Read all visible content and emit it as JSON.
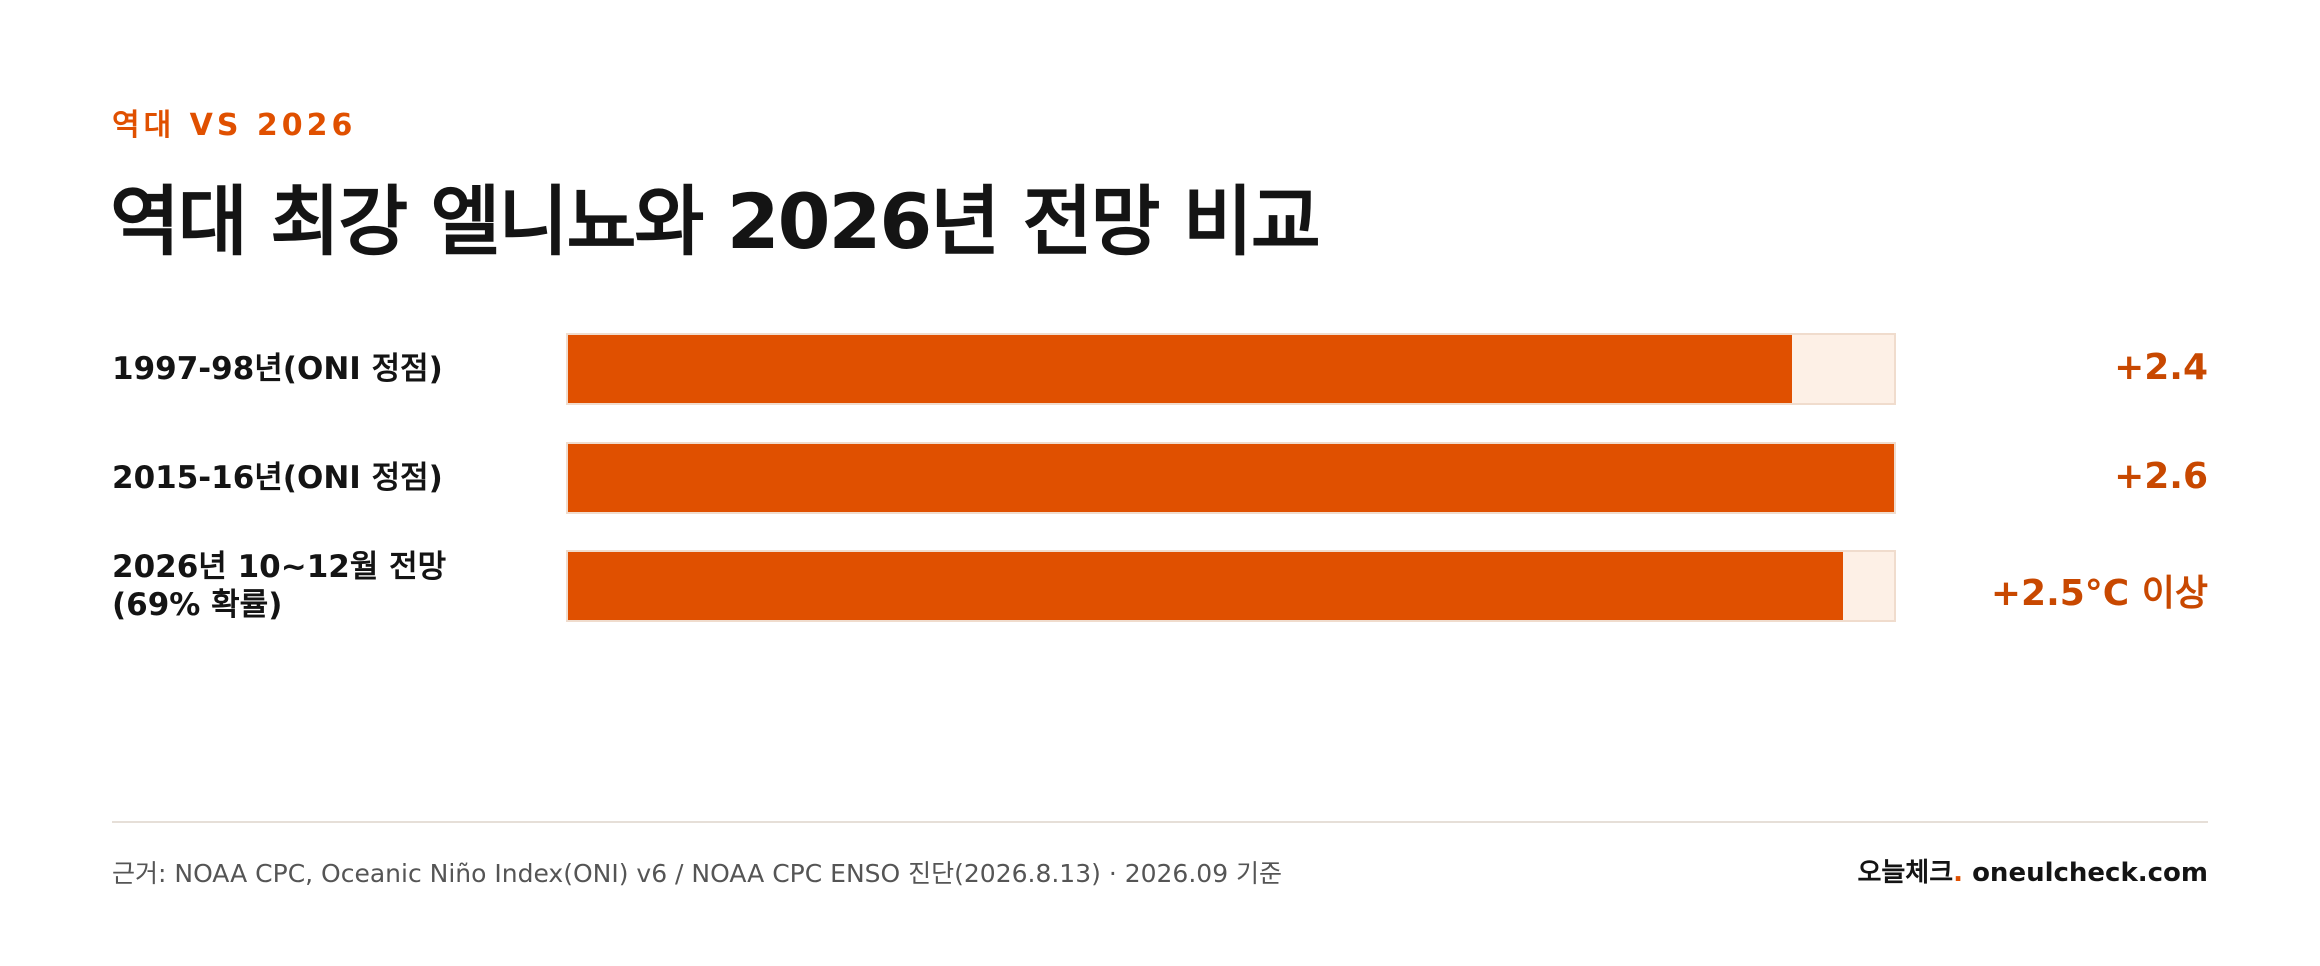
{
  "header": {
    "eyebrow": "역대 VS 2026",
    "title": "역대 최강 엘니뇨와 2026년 전망 비교"
  },
  "chart_data": {
    "type": "bar",
    "orientation": "horizontal",
    "xlim": [
      0,
      2.6
    ],
    "categories": [
      "1997-98년(ONI 정점)",
      "2015-16년(ONI 정점)",
      "2026년 10~12월 전망(69% 확률)"
    ],
    "values": [
      2.4,
      2.6,
      2.5
    ],
    "value_labels": [
      "+2.4",
      "+2.6",
      "+2.5°C 이상"
    ]
  },
  "footer": {
    "source": "근거: NOAA CPC, Oceanic Niño Index(ONI) v6 / NOAA CPC ENSO 진단(2026.8.13) · 2026.09 기준",
    "brand_name": "오늘체크",
    "brand_dot": ".",
    "brand_domain": " oneulcheck.com"
  },
  "colors": {
    "accent": "#e05000",
    "track": "#fdf0e6",
    "track_border": "#f0dccd",
    "value_text": "#c84800"
  }
}
